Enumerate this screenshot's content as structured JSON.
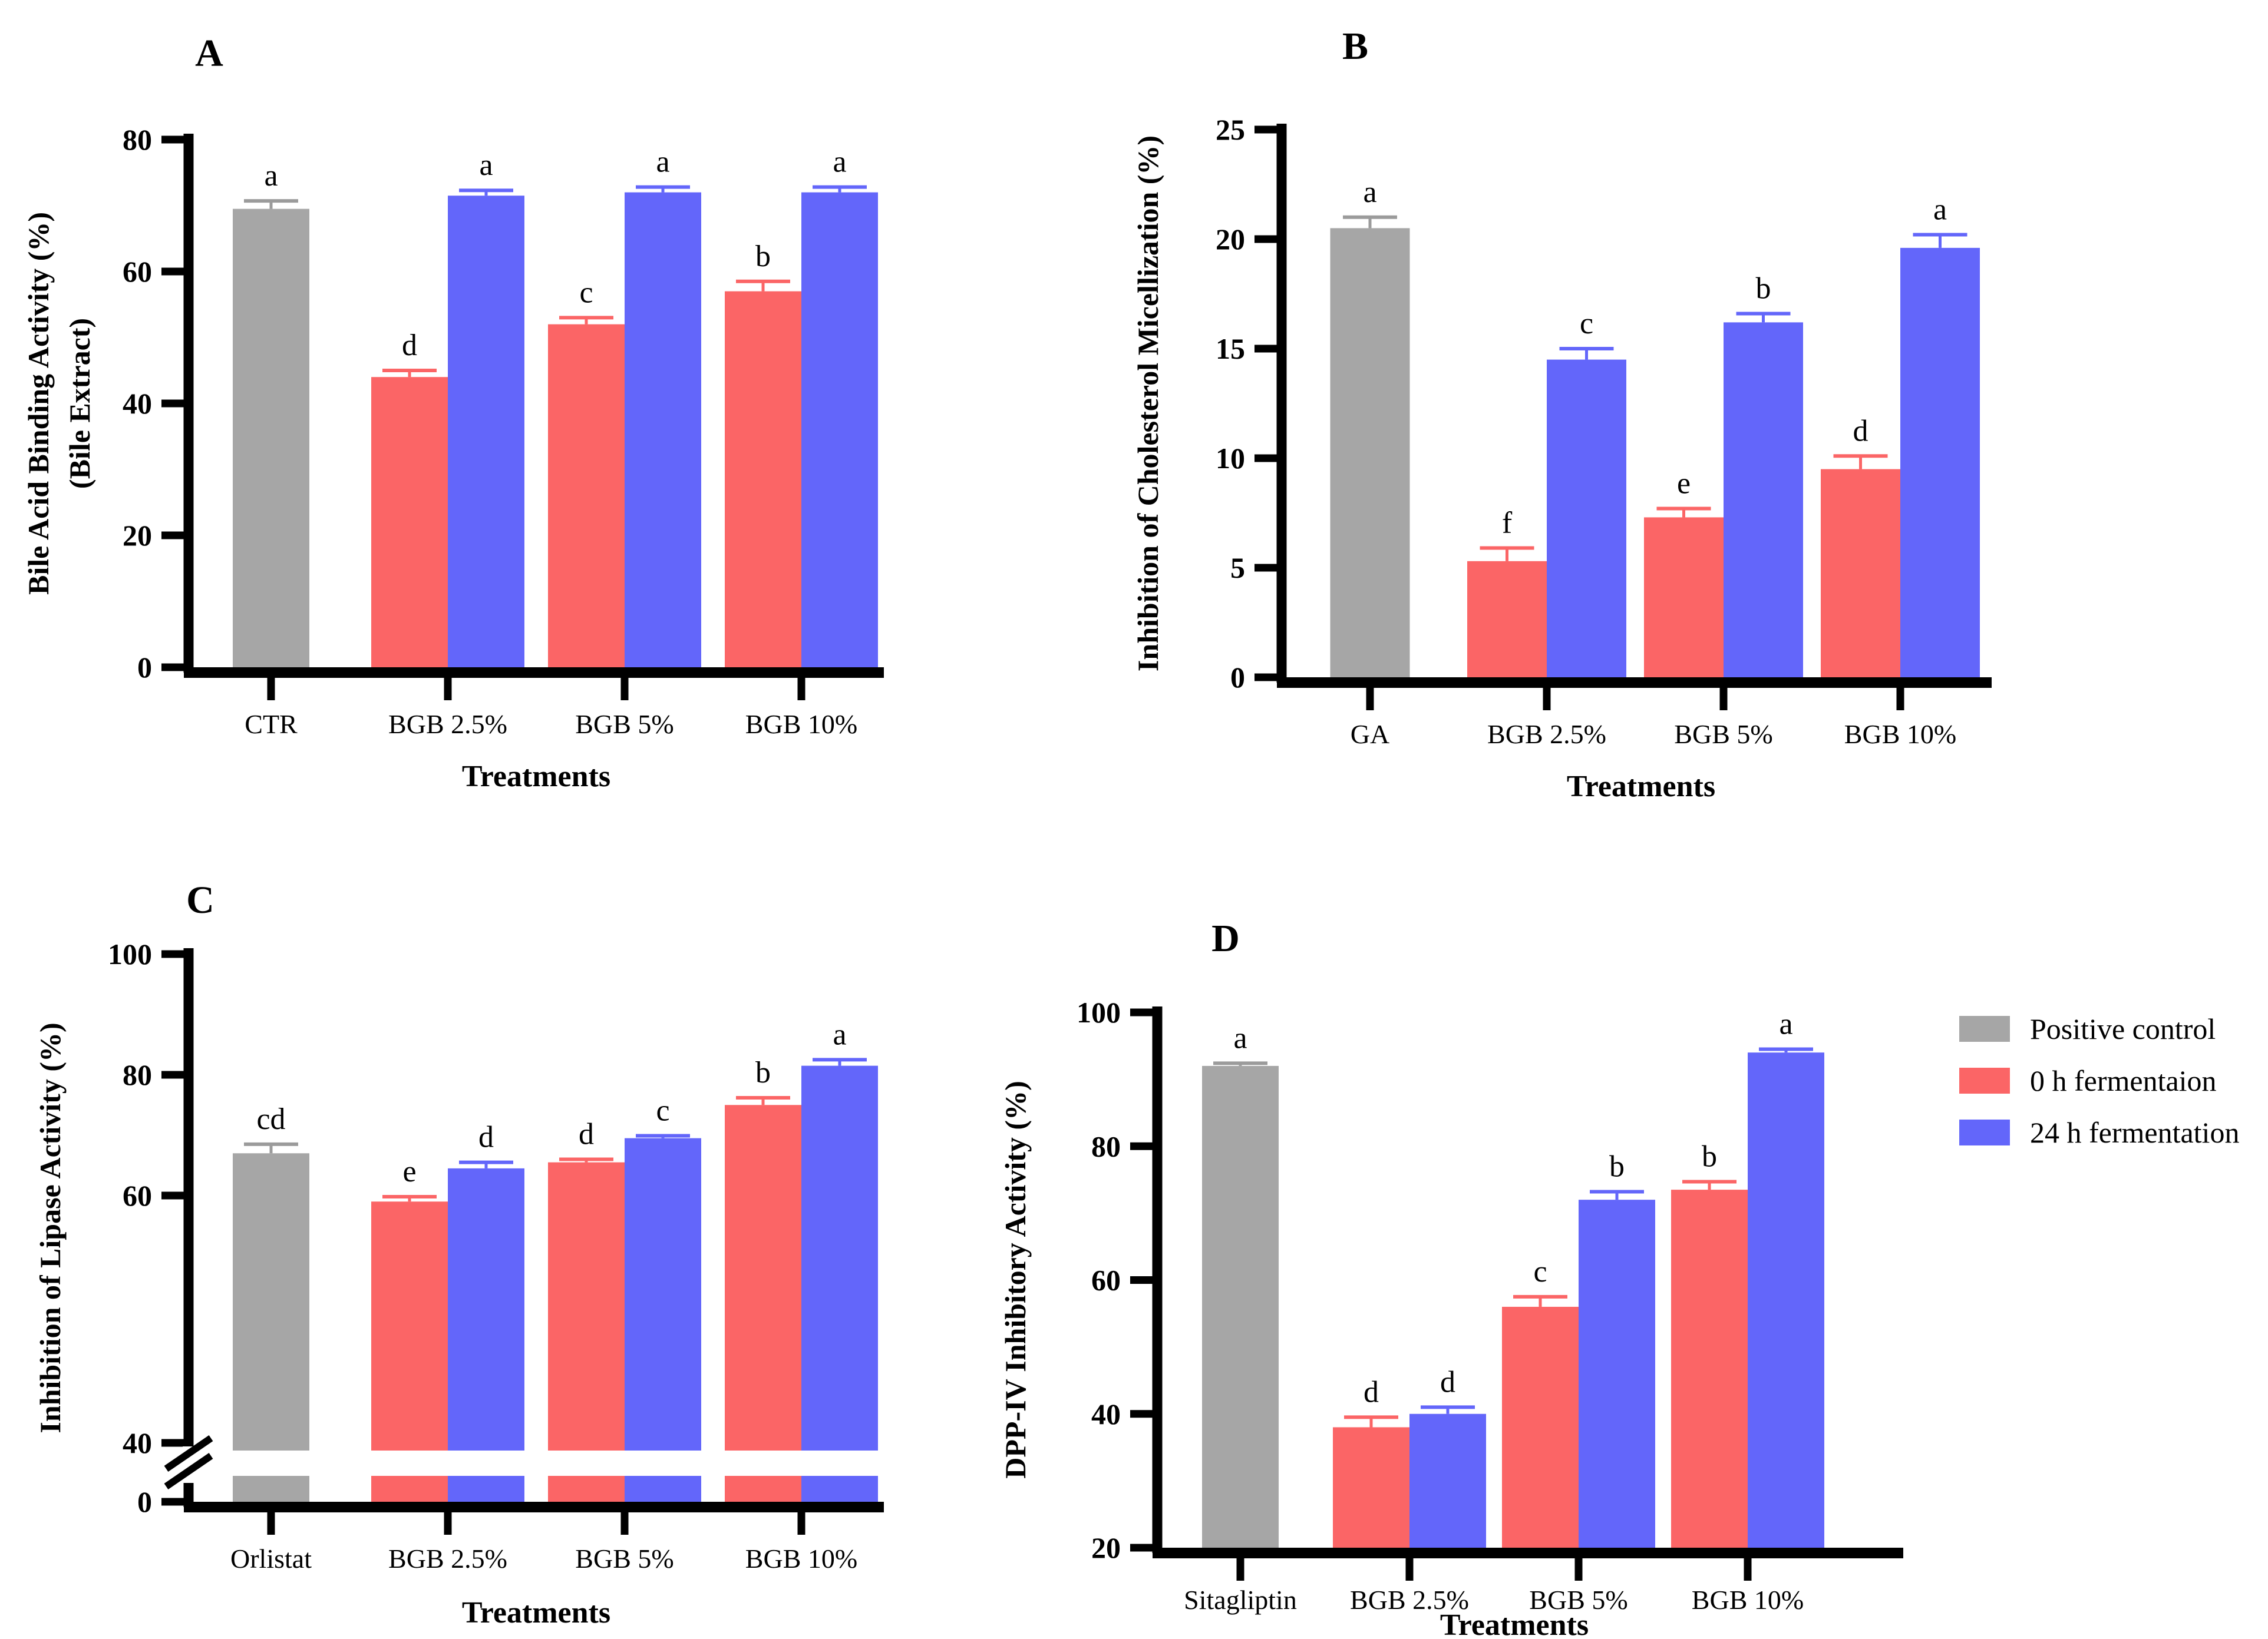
{
  "legend": {
    "items": [
      {
        "label": "Positive control",
        "color": "#A6A6A6"
      },
      {
        "label": "0 h fermentaion",
        "color": "#FB6566"
      },
      {
        "label": "24 h fermentation",
        "color": "#6366FA"
      }
    ]
  },
  "chart_data": [
    {
      "type": "bar",
      "panel_label": "A",
      "ylabel": "Bile Acid Binding Activity (%)",
      "ylabel_line2": "(Bile Extract)",
      "xlabel": "Treatments",
      "categories": [
        "CTR",
        "BGB 2.5%",
        "BGB 5%",
        "BGB 10%"
      ],
      "ylim": [
        0,
        80
      ],
      "yticks": [
        0,
        20,
        40,
        60,
        80
      ],
      "grid": false,
      "legend_position": "none",
      "series": [
        {
          "name": "Positive control",
          "values": [
            69.5,
            null,
            null,
            null
          ],
          "errors": [
            1.2,
            null,
            null,
            null
          ],
          "letters": [
            "a",
            null,
            null,
            null
          ]
        },
        {
          "name": "0 h fermentaion",
          "values": [
            null,
            44,
            52,
            57
          ],
          "errors": [
            null,
            1,
            1,
            1.5
          ],
          "letters": [
            null,
            "d",
            "c",
            "b"
          ]
        },
        {
          "name": "24 h fermentation",
          "values": [
            null,
            71.5,
            72,
            72
          ],
          "errors": [
            null,
            0.8,
            0.8,
            0.8
          ],
          "letters": [
            null,
            "a",
            "a",
            "a"
          ]
        }
      ]
    },
    {
      "type": "bar",
      "panel_label": "B",
      "ylabel": "Inhibition of Cholesterol Micellization (%)",
      "xlabel": "Treatments",
      "categories": [
        "GA",
        "BGB 2.5%",
        "BGB 5%",
        "BGB 10%"
      ],
      "ylim": [
        0,
        25
      ],
      "yticks": [
        0,
        5,
        10,
        15,
        20,
        25
      ],
      "grid": false,
      "legend_position": "none",
      "series": [
        {
          "name": "Positive control",
          "values": [
            20.5,
            null,
            null,
            null
          ],
          "errors": [
            0.5,
            null,
            null,
            null
          ],
          "letters": [
            "a",
            null,
            null,
            null
          ]
        },
        {
          "name": "0 h fermentaion",
          "values": [
            null,
            5.3,
            7.3,
            9.5
          ],
          "errors": [
            null,
            0.6,
            0.4,
            0.6
          ],
          "letters": [
            null,
            "f",
            "e",
            "d"
          ]
        },
        {
          "name": "24 h fermentation",
          "values": [
            null,
            14.5,
            16.2,
            19.6
          ],
          "errors": [
            null,
            0.5,
            0.4,
            0.6
          ],
          "letters": [
            null,
            "c",
            "b",
            "a"
          ]
        }
      ]
    },
    {
      "type": "bar",
      "panel_label": "C",
      "ylabel": "Inhibition of Lipase Activity (%)",
      "xlabel": "Treatments",
      "categories": [
        "Orlistat",
        "BGB 2.5%",
        "BGB 5%",
        "BGB 10%"
      ],
      "ylim": [
        0,
        100
      ],
      "yticks": [
        0,
        40,
        60,
        80,
        100
      ],
      "axis_break": {
        "between": [
          0,
          40
        ]
      },
      "grid": false,
      "legend_position": "none",
      "series": [
        {
          "name": "Positive control",
          "values": [
            67,
            null,
            null,
            null
          ],
          "errors": [
            1.5,
            null,
            null,
            null
          ],
          "letters": [
            "cd",
            null,
            null,
            null
          ]
        },
        {
          "name": "0 h fermentaion",
          "values": [
            null,
            59,
            65.5,
            75
          ],
          "errors": [
            null,
            0.8,
            0.5,
            1.2
          ],
          "letters": [
            null,
            "e",
            "d",
            "b"
          ]
        },
        {
          "name": "24 h fermentation",
          "values": [
            null,
            64.5,
            69.5,
            81.5
          ],
          "errors": [
            null,
            1,
            0.4,
            1
          ],
          "letters": [
            null,
            "d",
            "c",
            "a"
          ]
        }
      ]
    },
    {
      "type": "bar",
      "panel_label": "D",
      "ylabel": "DPP-IV Inhibitory Activity (%)",
      "xlabel": "Treatments",
      "categories": [
        "Sitagliptin",
        "BGB 2.5%",
        "BGB 5%",
        "BGB 10%"
      ],
      "ylim": [
        20,
        100
      ],
      "yticks": [
        20,
        40,
        60,
        80,
        100
      ],
      "grid": false,
      "legend_position": "right",
      "series": [
        {
          "name": "Positive control",
          "values": [
            92,
            null,
            null,
            null
          ],
          "errors": [
            0.4,
            null,
            null,
            null
          ],
          "letters": [
            "a",
            null,
            null,
            null
          ]
        },
        {
          "name": "0 h fermentaion",
          "values": [
            null,
            38,
            56,
            73.5
          ],
          "errors": [
            null,
            1.5,
            1.5,
            1.2
          ],
          "letters": [
            null,
            "d",
            "c",
            "b"
          ]
        },
        {
          "name": "24 h fermentation",
          "values": [
            null,
            40,
            72,
            94
          ],
          "errors": [
            null,
            1,
            1.2,
            0.5
          ],
          "letters": [
            null,
            "d",
            "b",
            "a"
          ]
        }
      ]
    }
  ]
}
